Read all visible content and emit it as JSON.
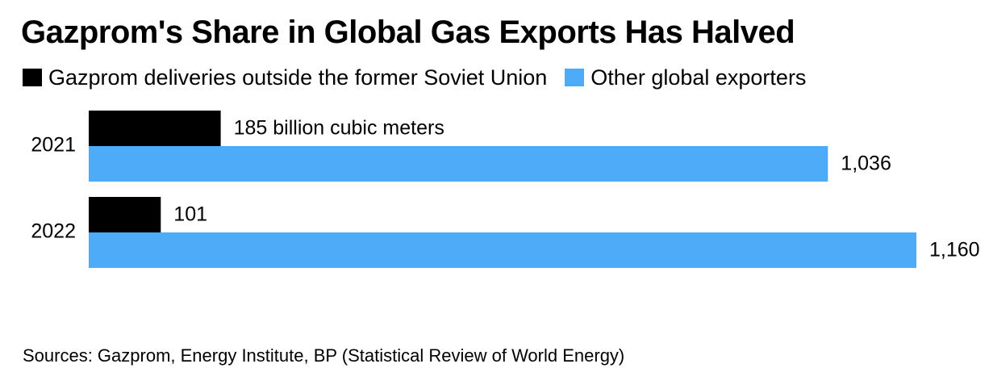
{
  "title": "Gazprom's Share in Global Gas Exports Has Halved",
  "legend": [
    {
      "label": "Gazprom deliveries outside the former Soviet Union",
      "color": "#000000"
    },
    {
      "label": "Other global exporters",
      "color": "#4DABF7"
    }
  ],
  "source": "Sources: Gazprom, Energy Institute, BP (Statistical Review of World Energy)",
  "chart_data": {
    "type": "bar",
    "orientation": "horizontal",
    "grouped": true,
    "categories": [
      "2021",
      "2022"
    ],
    "series": [
      {
        "name": "Gazprom deliveries outside the former Soviet Union",
        "values": [
          185,
          101
        ],
        "color": "#000000"
      },
      {
        "name": "Other global exporters",
        "values": [
          1036,
          1160
        ],
        "color": "#4DABF7"
      }
    ],
    "data_labels": [
      [
        "185 billion cubic meters",
        "1,036"
      ],
      [
        "101",
        "1,160"
      ]
    ],
    "xlim": [
      0,
      1160
    ],
    "grid": false,
    "legend_position": "top-left"
  }
}
